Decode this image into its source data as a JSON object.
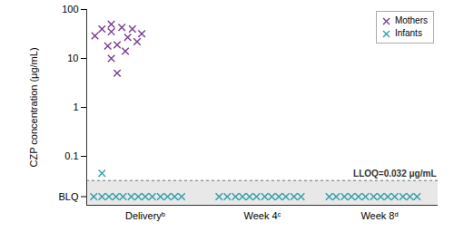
{
  "chart_data": {
    "type": "scatter",
    "y_label": "CZP concentration (μg/mL)",
    "log": "y",
    "grid": false,
    "legend": "top-right",
    "marker": "x",
    "xlim": [
      0,
      3
    ],
    "xticks": [
      {
        "value": 0.5,
        "label": "Deliveryᵇ"
      },
      {
        "value": 1.5,
        "label": "Week 4ᶜ"
      },
      {
        "value": 2.5,
        "label": "Week 8ᵈ"
      }
    ],
    "ylim": [
      0.01,
      100
    ],
    "yticks": [
      {
        "value": 0.015,
        "label": "BLQ"
      },
      0.1,
      1,
      10,
      100
    ],
    "annotations": [
      {
        "text": "LLOQ=0.032 μg/mL",
        "y": 0.032,
        "line_style": "dashed"
      }
    ],
    "series": [
      {
        "name": "Mothers",
        "color": "#7a3b8f",
        "marker": "x",
        "x": [
          0.07,
          0.13,
          0.18,
          0.21,
          0.21,
          0.21,
          0.26,
          0.26,
          0.3,
          0.33,
          0.35,
          0.39,
          0.43,
          0.47
        ],
        "values": [
          29,
          40,
          18,
          50,
          35,
          10,
          19,
          5,
          43,
          14,
          27,
          40,
          22,
          32
        ]
      },
      {
        "name": "Infants",
        "color": "#2f9fa6",
        "marker": "x",
        "x": [
          0.13,
          0.06,
          0.13,
          0.19,
          0.25,
          0.31,
          0.38,
          0.44,
          0.5,
          0.56,
          0.63,
          0.69,
          0.75,
          0.81,
          1.13,
          1.2,
          1.27,
          1.33,
          1.39,
          1.45,
          1.52,
          1.58,
          1.64,
          1.7,
          1.77,
          1.83,
          2.07,
          2.13,
          2.2,
          2.26,
          2.32,
          2.38,
          2.45,
          2.51,
          2.57,
          2.63,
          2.7,
          2.76,
          2.82
        ],
        "values": [
          0.045,
          0.015,
          0.015,
          0.015,
          0.015,
          0.015,
          0.015,
          0.015,
          0.015,
          0.015,
          0.015,
          0.015,
          0.015,
          0.015,
          0.015,
          0.015,
          0.015,
          0.015,
          0.015,
          0.015,
          0.015,
          0.015,
          0.015,
          0.015,
          0.015,
          0.015,
          0.015,
          0.015,
          0.015,
          0.015,
          0.015,
          0.015,
          0.015,
          0.015,
          0.015,
          0.015,
          0.015,
          0.015,
          0.015
        ]
      }
    ]
  }
}
